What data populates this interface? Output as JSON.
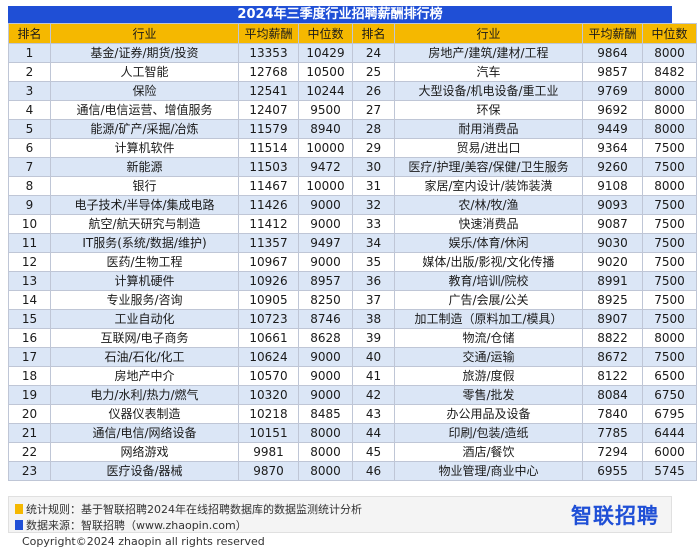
{
  "title": "2024年三季度行业招聘薪酬排行榜",
  "headers": {
    "rank": "排名",
    "industry": "行业",
    "avg": "平均薪酬",
    "median": "中位数",
    "rank2": "排名",
    "industry2": "行业",
    "avg2": "平均薪酬",
    "median2": "中位数"
  },
  "rows": [
    {
      "r1": "1",
      "i1": "基金/证券/期货/投资",
      "a1": "13353",
      "m1": "10429",
      "r2": "24",
      "i2": "房地产/建筑/建材/工程",
      "a2": "9864",
      "m2": "8000"
    },
    {
      "r1": "2",
      "i1": "人工智能",
      "a1": "12768",
      "m1": "10500",
      "r2": "25",
      "i2": "汽车",
      "a2": "9857",
      "m2": "8482"
    },
    {
      "r1": "3",
      "i1": "保险",
      "a1": "12541",
      "m1": "10244",
      "r2": "26",
      "i2": "大型设备/机电设备/重工业",
      "a2": "9769",
      "m2": "8000"
    },
    {
      "r1": "4",
      "i1": "通信/电信运营、增值服务",
      "a1": "12407",
      "m1": "9500",
      "r2": "27",
      "i2": "环保",
      "a2": "9692",
      "m2": "8000"
    },
    {
      "r1": "5",
      "i1": "能源/矿产/采掘/冶炼",
      "a1": "11579",
      "m1": "8940",
      "r2": "28",
      "i2": "耐用消费品",
      "a2": "9449",
      "m2": "8000"
    },
    {
      "r1": "6",
      "i1": "计算机软件",
      "a1": "11514",
      "m1": "10000",
      "r2": "29",
      "i2": "贸易/进出口",
      "a2": "9364",
      "m2": "7500"
    },
    {
      "r1": "7",
      "i1": "新能源",
      "a1": "11503",
      "m1": "9472",
      "r2": "30",
      "i2": "医疗/护理/美容/保健/卫生服务",
      "a2": "9260",
      "m2": "7500"
    },
    {
      "r1": "8",
      "i1": "银行",
      "a1": "11467",
      "m1": "10000",
      "r2": "31",
      "i2": "家居/室内设计/装饰装潢",
      "a2": "9108",
      "m2": "8000"
    },
    {
      "r1": "9",
      "i1": "电子技术/半导体/集成电路",
      "a1": "11426",
      "m1": "9000",
      "r2": "32",
      "i2": "农/林/牧/渔",
      "a2": "9093",
      "m2": "7500"
    },
    {
      "r1": "10",
      "i1": "航空/航天研究与制造",
      "a1": "11412",
      "m1": "9000",
      "r2": "33",
      "i2": "快速消费品",
      "a2": "9087",
      "m2": "7500"
    },
    {
      "r1": "11",
      "i1": "IT服务(系统/数据/维护)",
      "a1": "11357",
      "m1": "9497",
      "r2": "34",
      "i2": "娱乐/体育/休闲",
      "a2": "9030",
      "m2": "7500"
    },
    {
      "r1": "12",
      "i1": "医药/生物工程",
      "a1": "10967",
      "m1": "9000",
      "r2": "35",
      "i2": "媒体/出版/影视/文化传播",
      "a2": "9020",
      "m2": "7500"
    },
    {
      "r1": "13",
      "i1": "计算机硬件",
      "a1": "10926",
      "m1": "8957",
      "r2": "36",
      "i2": "教育/培训/院校",
      "a2": "8991",
      "m2": "7500"
    },
    {
      "r1": "14",
      "i1": "专业服务/咨询",
      "a1": "10905",
      "m1": "8250",
      "r2": "37",
      "i2": "广告/会展/公关",
      "a2": "8925",
      "m2": "7500"
    },
    {
      "r1": "15",
      "i1": "工业自动化",
      "a1": "10723",
      "m1": "8746",
      "r2": "38",
      "i2": "加工制造（原料加工/模具）",
      "a2": "8907",
      "m2": "7500"
    },
    {
      "r1": "16",
      "i1": "互联网/电子商务",
      "a1": "10661",
      "m1": "8628",
      "r2": "39",
      "i2": "物流/仓储",
      "a2": "8822",
      "m2": "8000"
    },
    {
      "r1": "17",
      "i1": "石油/石化/化工",
      "a1": "10624",
      "m1": "9000",
      "r2": "40",
      "i2": "交通/运输",
      "a2": "8672",
      "m2": "7500"
    },
    {
      "r1": "18",
      "i1": "房地产中介",
      "a1": "10570",
      "m1": "9000",
      "r2": "41",
      "i2": "旅游/度假",
      "a2": "8122",
      "m2": "6500"
    },
    {
      "r1": "19",
      "i1": "电力/水利/热力/燃气",
      "a1": "10320",
      "m1": "9000",
      "r2": "42",
      "i2": "零售/批发",
      "a2": "8084",
      "m2": "6750"
    },
    {
      "r1": "20",
      "i1": "仪器仪表制造",
      "a1": "10218",
      "m1": "8485",
      "r2": "43",
      "i2": "办公用品及设备",
      "a2": "7840",
      "m2": "6795"
    },
    {
      "r1": "21",
      "i1": "通信/电信/网络设备",
      "a1": "10151",
      "m1": "8000",
      "r2": "44",
      "i2": "印刷/包装/造纸",
      "a2": "7785",
      "m2": "6444"
    },
    {
      "r1": "22",
      "i1": "网络游戏",
      "a1": "9981",
      "m1": "8000",
      "r2": "45",
      "i2": "酒店/餐饮",
      "a2": "7294",
      "m2": "6000"
    },
    {
      "r1": "23",
      "i1": "医疗设备/器械",
      "a1": "9870",
      "m1": "8000",
      "r2": "46",
      "i2": "物业管理/商业中心",
      "a2": "6955",
      "m2": "5745"
    }
  ],
  "footer": {
    "rule": "统计规则：基于智联招聘2024年在线招聘数据库的数据监测统计分析",
    "source": "数据来源：智联招聘（www.zhaopin.com）",
    "brand": "智联招聘",
    "copyright": "Copyright©2024 zhaopin all rights reserved"
  },
  "colors": {
    "title_bg": "#1f4fd6",
    "header_bg": "#f5b800",
    "row_stripe": "#dbe6f6",
    "rule_swatch": "#f5b800",
    "source_swatch": "#1f4fd6"
  }
}
